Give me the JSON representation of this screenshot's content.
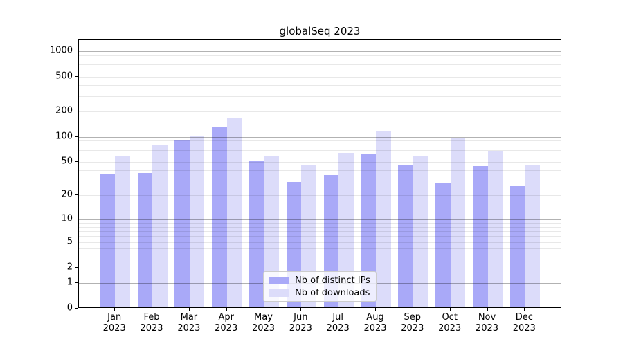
{
  "title": "globalSeq 2023",
  "legend": {
    "entries": [
      {
        "label": "Nb of distinct IPs",
        "color": "#a9a9f8"
      },
      {
        "label": "Nb of downloads",
        "color": "#dcdcfa"
      }
    ]
  },
  "y_axis": {
    "tick_labels": [
      "1000",
      "500",
      "200",
      "100",
      "50",
      "20",
      "10",
      "5",
      "2",
      "1",
      "0"
    ]
  },
  "x_axis": {
    "months": [
      "Jan",
      "Feb",
      "Mar",
      "Apr",
      "May",
      "Jun",
      "Jul",
      "Aug",
      "Sep",
      "Oct",
      "Nov",
      "Dec"
    ],
    "year": "2023"
  },
  "chart_data": {
    "type": "bar",
    "title": "globalSeq 2023",
    "categories": [
      "Jan 2023",
      "Feb 2023",
      "Mar 2023",
      "Apr 2023",
      "May 2023",
      "Jun 2023",
      "Jul 2023",
      "Aug 2023",
      "Sep 2023",
      "Oct 2023",
      "Nov 2023",
      "Dec 2023"
    ],
    "series": [
      {
        "name": "Nb of distinct IPs",
        "color": "#a9a9f8",
        "values": [
          35,
          36,
          88,
          125,
          49,
          28,
          34,
          61,
          44,
          27,
          43,
          25
        ]
      },
      {
        "name": "Nb of downloads",
        "color": "#dcdcfa",
        "values": [
          57,
          78,
          100,
          161,
          57,
          44,
          62,
          110,
          56,
          93,
          66,
          44
        ]
      }
    ],
    "xlabel": "",
    "ylabel": "",
    "yscale": "symlog ln(1+x)",
    "yticks": [
      0,
      1,
      2,
      5,
      10,
      20,
      50,
      100,
      200,
      500,
      1000
    ],
    "ylim": [
      0,
      1350
    ],
    "grid": "horizontal, major and minor, drawn over bars",
    "legend_position": "inside bottom-center"
  }
}
